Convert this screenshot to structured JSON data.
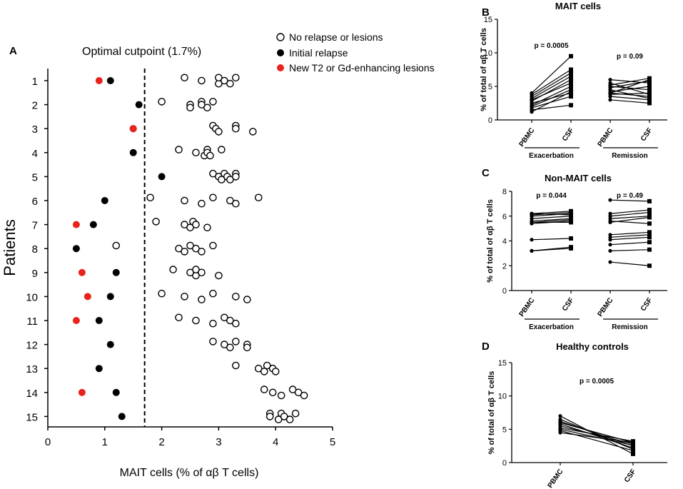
{
  "colors": {
    "black": "#000000",
    "red": "#e8231c",
    "white": "#ffffff"
  },
  "chart_data": [
    {
      "panel": "A",
      "type": "scatter",
      "title": "Optimal cutpoint (1.7%)",
      "cutpoint": 1.7,
      "xlabel": "MAIT cells  (% of αβ T cells)",
      "ylabel": "Patients",
      "xlim": [
        0,
        5
      ],
      "xticks": [
        0,
        1,
        2,
        3,
        4,
        5
      ],
      "patients": [
        "1",
        "2",
        "3",
        "4",
        "5",
        "6",
        "7",
        "8",
        "9",
        "10",
        "11",
        "12",
        "13",
        "14",
        "15"
      ],
      "legend": [
        "No relapse or lesions",
        "Initial relapse",
        "New T2 or Gd-enhancing lesions"
      ],
      "no_relapse": [
        [
          2.4,
          2.7,
          3.0,
          3.0,
          3.1,
          3.2,
          3.3
        ],
        [
          2.0,
          2.5,
          2.5,
          2.7,
          2.7,
          2.8,
          2.9
        ],
        [
          2.9,
          2.95,
          3.0,
          3.3,
          3.3,
          3.6
        ],
        [
          2.3,
          2.6,
          2.75,
          2.8,
          2.8,
          2.85,
          3.05
        ],
        [
          2.9,
          3.0,
          3.05,
          3.1,
          3.15,
          3.2,
          3.3,
          3.3
        ],
        [
          1.8,
          2.4,
          2.7,
          2.9,
          3.2,
          3.3,
          3.7
        ],
        [
          1.9,
          2.4,
          2.5,
          2.55,
          2.6,
          2.8
        ],
        [
          1.2,
          2.3,
          2.4,
          2.5,
          2.6,
          2.7,
          2.9
        ],
        [
          2.2,
          2.5,
          2.6,
          2.6,
          2.7,
          3.0
        ],
        [
          2.0,
          2.4,
          2.7,
          2.9,
          3.3,
          3.5
        ],
        [
          2.3,
          2.6,
          2.9,
          3.1,
          3.2,
          3.3
        ],
        [
          2.9,
          3.1,
          3.2,
          3.3,
          3.5,
          3.5
        ],
        [
          3.3,
          3.7,
          3.8,
          3.85,
          3.95,
          4.0
        ],
        [
          3.8,
          3.95,
          4.1,
          4.3,
          4.4,
          4.5
        ],
        [
          3.9,
          3.9,
          4.05,
          4.1,
          4.15,
          4.25,
          4.35
        ]
      ],
      "initial_relapse": [
        1.1,
        1.6,
        1.5,
        1.5,
        2.0,
        1.0,
        0.8,
        0.5,
        1.2,
        1.1,
        0.9,
        1.1,
        0.9,
        1.2,
        1.3
      ],
      "new_lesions": [
        0.9,
        null,
        1.5,
        null,
        null,
        null,
        0.5,
        null,
        0.6,
        0.7,
        0.5,
        null,
        null,
        0.6,
        null
      ]
    },
    {
      "panel": "B",
      "type": "line",
      "title": "MAIT cells",
      "ylabel": "% of total of αβ T cells",
      "ylim": [
        0,
        15
      ],
      "yticks": [
        0,
        5,
        10,
        15
      ],
      "groups": [
        "Exacerbation",
        "Remission"
      ],
      "categories": [
        "PBMC",
        "CSF"
      ],
      "p_values": [
        "p = 0.0005",
        "p = 0.09"
      ],
      "exacerbation_pairs": [
        [
          1.2,
          4.2
        ],
        [
          1.5,
          2.2
        ],
        [
          1.8,
          3.5
        ],
        [
          2.0,
          4.5
        ],
        [
          2.2,
          5.0
        ],
        [
          2.5,
          4.0
        ],
        [
          2.8,
          6.0
        ],
        [
          3.0,
          5.5
        ],
        [
          3.2,
          6.5
        ],
        [
          3.5,
          7.0
        ],
        [
          3.8,
          7.5
        ],
        [
          4.0,
          9.5
        ]
      ],
      "remission_pairs": [
        [
          3.0,
          2.5
        ],
        [
          3.5,
          3.0
        ],
        [
          3.8,
          4.0
        ],
        [
          4.0,
          3.5
        ],
        [
          4.2,
          5.0
        ],
        [
          4.5,
          3.2
        ],
        [
          4.8,
          5.8
        ],
        [
          5.0,
          4.5
        ],
        [
          5.2,
          6.2
        ],
        [
          5.5,
          3.8
        ],
        [
          6.0,
          5.5
        ],
        [
          4.0,
          6.0
        ]
      ]
    },
    {
      "panel": "C",
      "type": "line",
      "title": "Non-MAIT cells",
      "ylabel": "% of total of αβ T cells",
      "ylim": [
        0,
        8
      ],
      "yticks": [
        0,
        2,
        4,
        6,
        8
      ],
      "groups": [
        "Exacerbation",
        "Remission"
      ],
      "categories": [
        "PBMC",
        "CSF"
      ],
      "p_values": [
        "p = 0.044",
        "p = 0.49"
      ],
      "exacerbation_pairs": [
        [
          3.2,
          3.4
        ],
        [
          3.2,
          3.5
        ],
        [
          4.1,
          4.2
        ],
        [
          5.4,
          5.6
        ],
        [
          5.5,
          5.7
        ],
        [
          5.6,
          5.8
        ],
        [
          5.8,
          6.0
        ],
        [
          6.0,
          6.2
        ],
        [
          6.1,
          6.3
        ],
        [
          6.2,
          6.4
        ],
        [
          5.5,
          5.5
        ],
        [
          6.2,
          6.1
        ]
      ],
      "remission_pairs": [
        [
          2.3,
          2.0
        ],
        [
          3.2,
          3.3
        ],
        [
          3.7,
          3.9
        ],
        [
          4.1,
          4.3
        ],
        [
          4.3,
          4.5
        ],
        [
          4.5,
          4.7
        ],
        [
          5.5,
          5.9
        ],
        [
          5.8,
          6.0
        ],
        [
          6.0,
          6.3
        ],
        [
          6.2,
          6.5
        ],
        [
          5.6,
          5.4
        ],
        [
          7.3,
          7.2
        ]
      ]
    },
    {
      "panel": "D",
      "type": "line",
      "title": "Healthy controls",
      "ylabel": "% of total of αβ T cells",
      "ylim": [
        0,
        15
      ],
      "yticks": [
        0,
        5,
        10,
        15
      ],
      "categories": [
        "PBMC",
        "CSF"
      ],
      "p_values": [
        "p = 0.0005"
      ],
      "pairs": [
        [
          7.0,
          1.3
        ],
        [
          6.5,
          2.0
        ],
        [
          6.2,
          2.5
        ],
        [
          6.0,
          3.0
        ],
        [
          5.8,
          2.2
        ],
        [
          5.5,
          2.8
        ],
        [
          5.2,
          3.2
        ],
        [
          5.0,
          2.6
        ],
        [
          4.8,
          1.8
        ],
        [
          4.5,
          3.0
        ]
      ]
    }
  ]
}
